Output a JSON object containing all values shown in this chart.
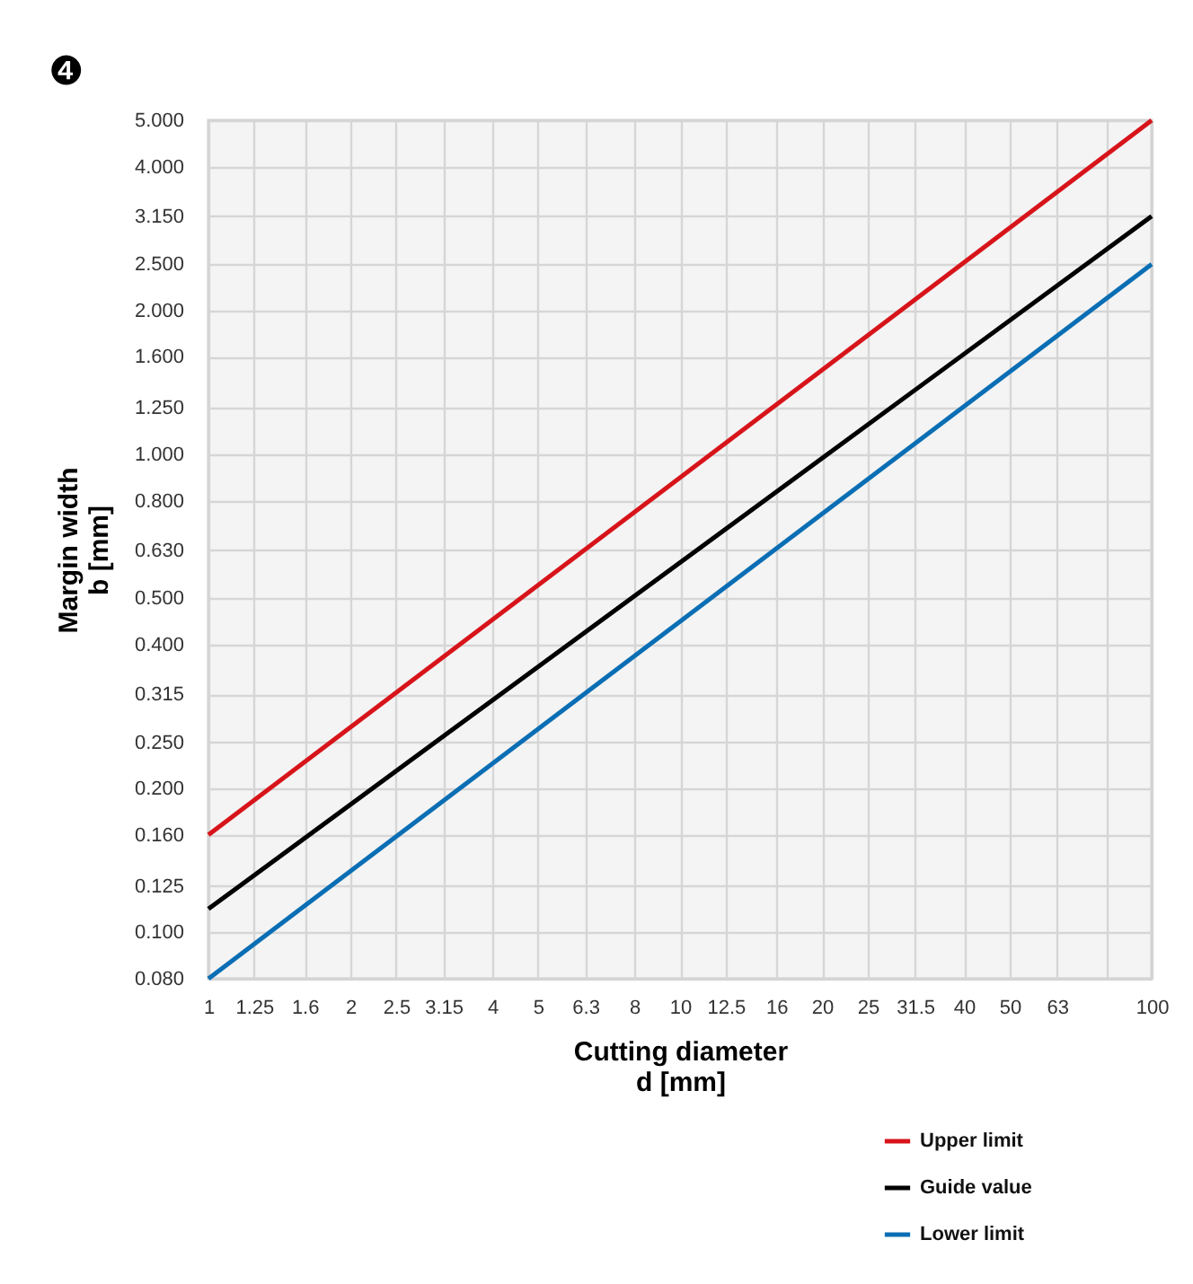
{
  "chart_data": {
    "type": "line",
    "xlabel": "Cutting diameter\nd [mm]",
    "ylabel": "Margin width\nb [mm]",
    "annotations": [
      "❹"
    ],
    "log": "xy",
    "grid": true,
    "legend": "bottom right",
    "marker": "none",
    "line_style": "solid",
    "x": [
      1,
      100
    ],
    "xlim": [
      1,
      100
    ],
    "xticks": [
      1,
      1.25,
      1.6,
      2,
      2.5,
      3.15,
      4,
      5,
      6.3,
      8,
      10,
      12.5,
      16,
      20,
      25,
      31.5,
      40,
      50,
      63,
      {
        "value": 80,
        "label": null
      },
      100
    ],
    "ylim": [
      0.08,
      5
    ],
    "yticks": [
      {
        "value": 0.08,
        "label": "0.080"
      },
      {
        "value": 0.1,
        "label": "0.100"
      },
      {
        "value": 0.125,
        "label": "0.125"
      },
      {
        "value": 0.16,
        "label": "0.160"
      },
      {
        "value": 0.2,
        "label": "0.200"
      },
      {
        "value": 0.25,
        "label": "0.250"
      },
      {
        "value": 0.315,
        "label": "0.315"
      },
      {
        "value": 0.4,
        "label": "0.400"
      },
      {
        "value": 0.5,
        "label": "0.500"
      },
      {
        "value": 0.63,
        "label": "0.630"
      },
      {
        "value": 0.8,
        "label": "0.800"
      },
      {
        "value": 1,
        "label": "1.000"
      },
      {
        "value": 1.25,
        "label": "1.250"
      },
      {
        "value": 1.6,
        "label": "1.600"
      },
      {
        "value": 2,
        "label": "2.000"
      },
      {
        "value": 2.5,
        "label": "2.500"
      },
      {
        "value": 3.15,
        "label": "3.150"
      },
      {
        "value": 4,
        "label": "4.000"
      },
      {
        "value": 5,
        "label": "5.000"
      }
    ],
    "series": [
      {
        "name": "Upper limit",
        "color": "#d7141a",
        "values": [
          0.16,
          5
        ]
      },
      {
        "name": "Guide value",
        "color": "#000000",
        "values": [
          0.112,
          3.15
        ]
      },
      {
        "name": "Lower limit",
        "color": "#0a6eb4",
        "values": [
          0.08,
          2.5
        ]
      }
    ]
  }
}
